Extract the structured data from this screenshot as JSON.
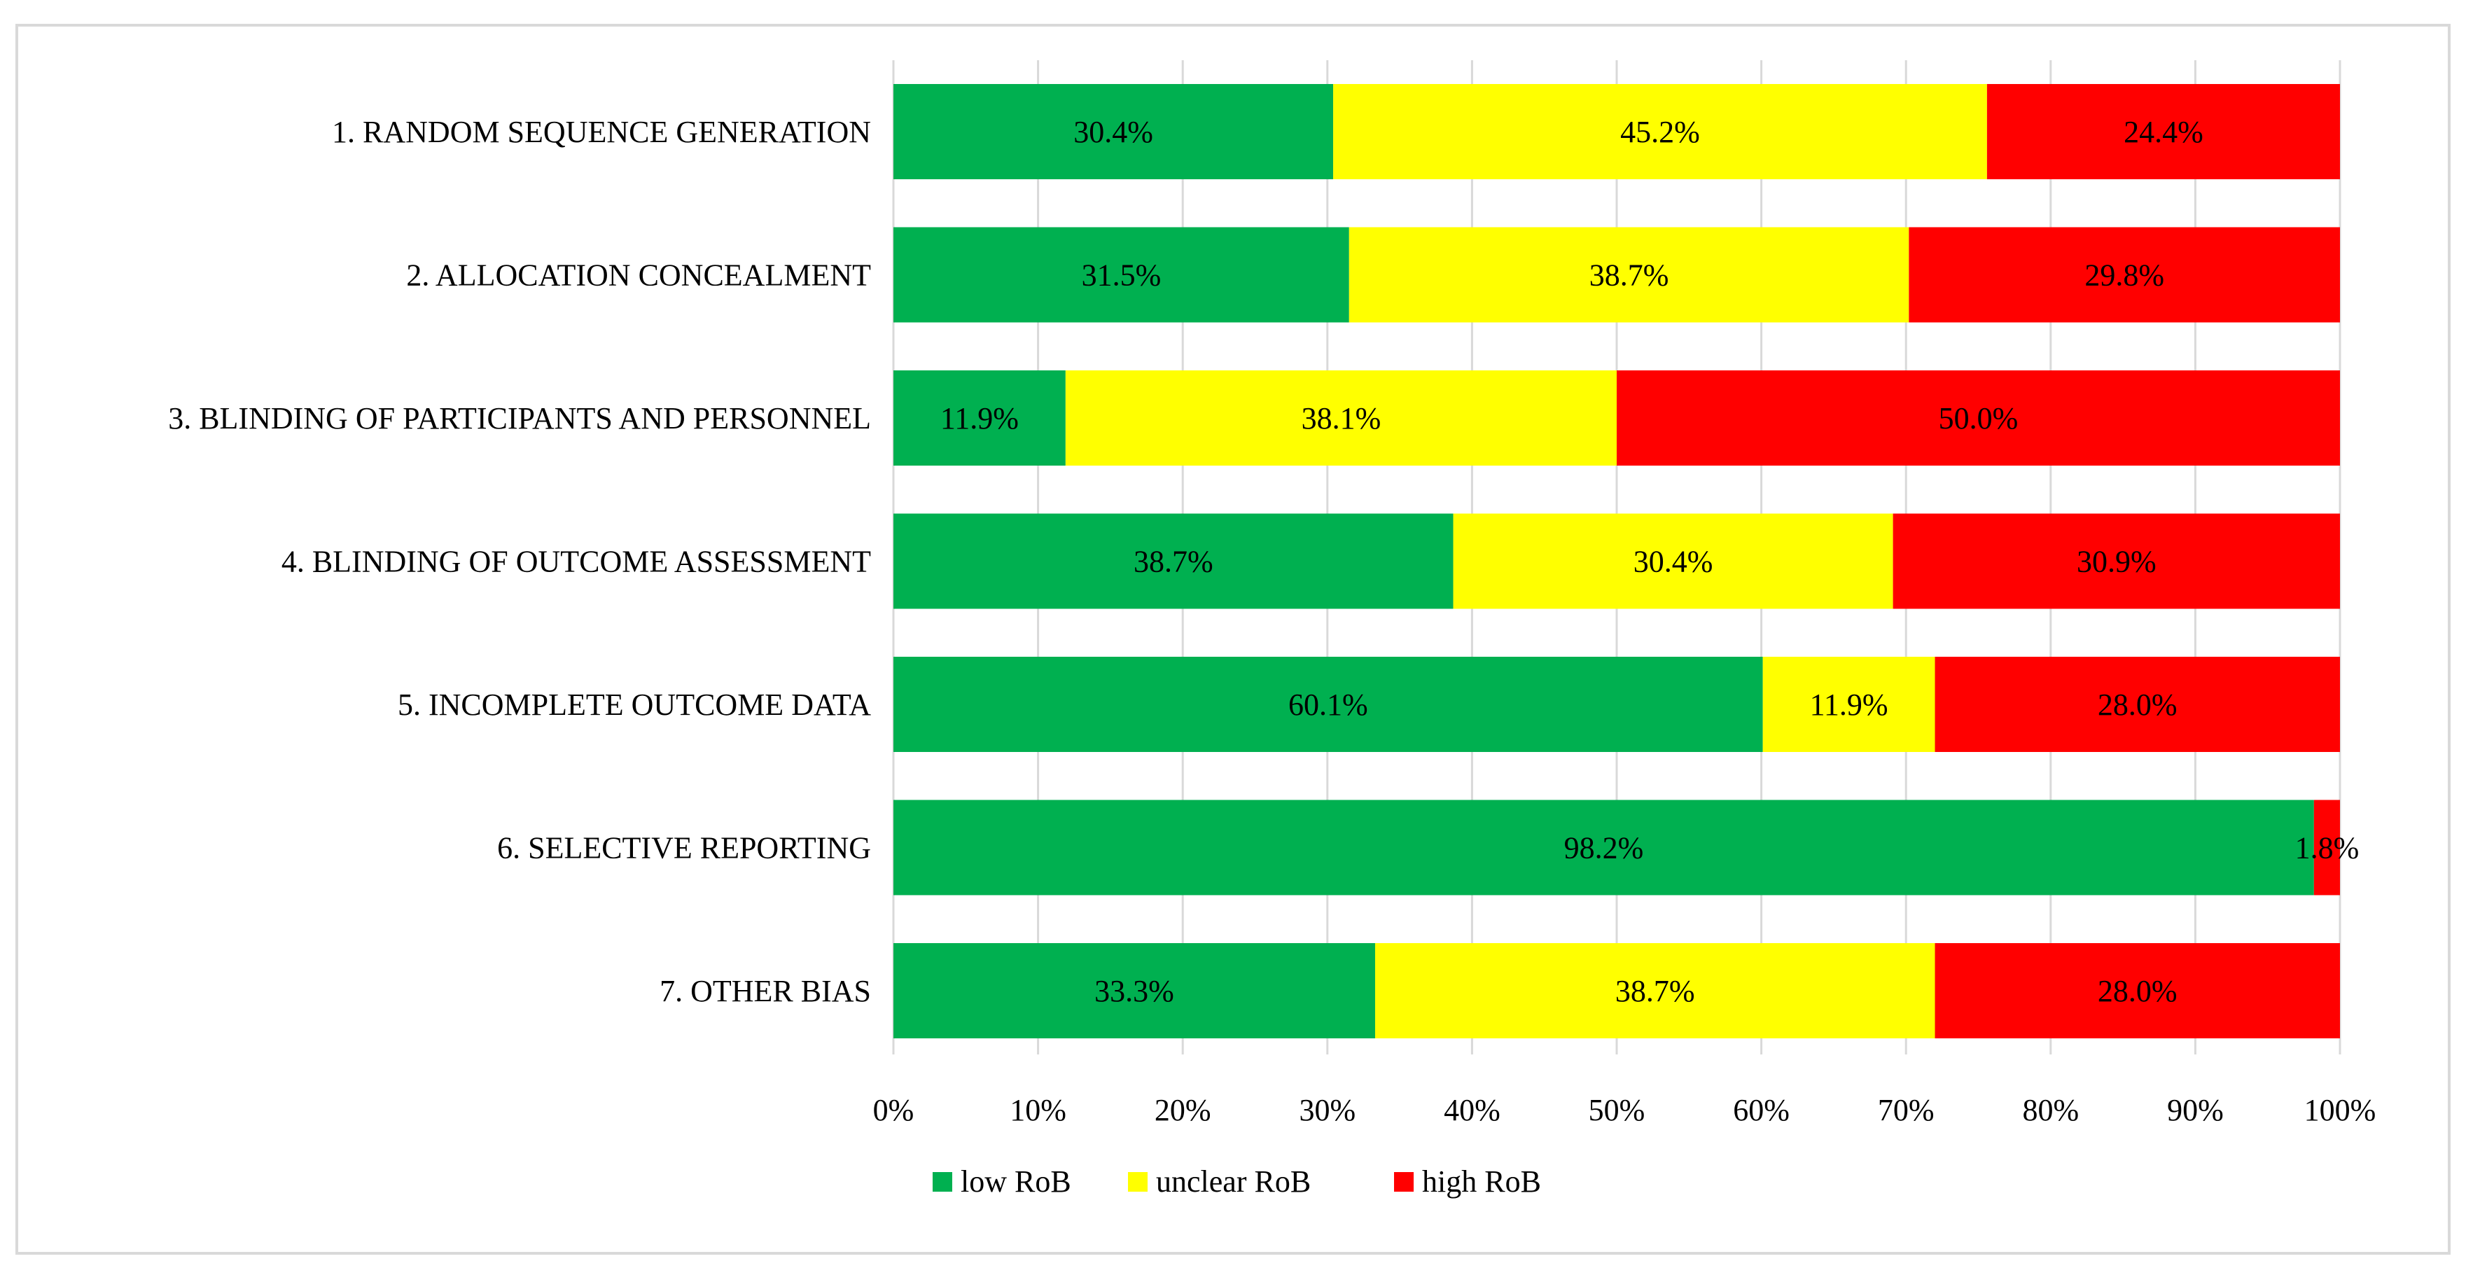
{
  "chart_data": {
    "type": "bar",
    "orientation": "horizontal",
    "stacked": "percent",
    "categories": [
      "1. RANDOM SEQUENCE GENERATION",
      "2. ALLOCATION CONCEALMENT",
      "3. BLINDING OF PARTICIPANTS AND  PERSONNEL",
      "4. BLINDING OF OUTCOME ASSESSMENT",
      "5. INCOMPLETE OUTCOME DATA",
      "6. SELECTIVE REPORTING",
      "7. OTHER BIAS"
    ],
    "series": [
      {
        "name": "low RoB",
        "color": "#00b050",
        "values": [
          30.4,
          31.5,
          11.9,
          38.7,
          60.1,
          98.2,
          33.3
        ],
        "labels": [
          "30.4%",
          "31.5%",
          "11.9%",
          "38.7%",
          "60.1%",
          "98.2%",
          "33.3%"
        ]
      },
      {
        "name": "unclear RoB",
        "color": "#ffff00",
        "values": [
          45.2,
          38.7,
          38.1,
          30.4,
          11.9,
          0.0,
          38.7
        ],
        "labels": [
          "45.2%",
          "38.7%",
          "38.1%",
          "30.4%",
          "11.9%",
          "",
          "38.7%"
        ]
      },
      {
        "name": "high RoB",
        "color": "#ff0000",
        "values": [
          24.4,
          29.8,
          50.0,
          30.9,
          28.0,
          1.8,
          28.0
        ],
        "labels": [
          "24.4%",
          "29.8%",
          "50.0%",
          "30.9%",
          "28.0%",
          "1.8%",
          "28.0%"
        ]
      }
    ],
    "xlim": [
      0,
      100
    ],
    "xticks": [
      "0%",
      "10%",
      "20%",
      "30%",
      "40%",
      "50%",
      "60%",
      "70%",
      "80%",
      "90%",
      "100%"
    ],
    "title": "",
    "xlabel": "",
    "ylabel": "",
    "grid": true,
    "legend_position": "bottom-center"
  }
}
